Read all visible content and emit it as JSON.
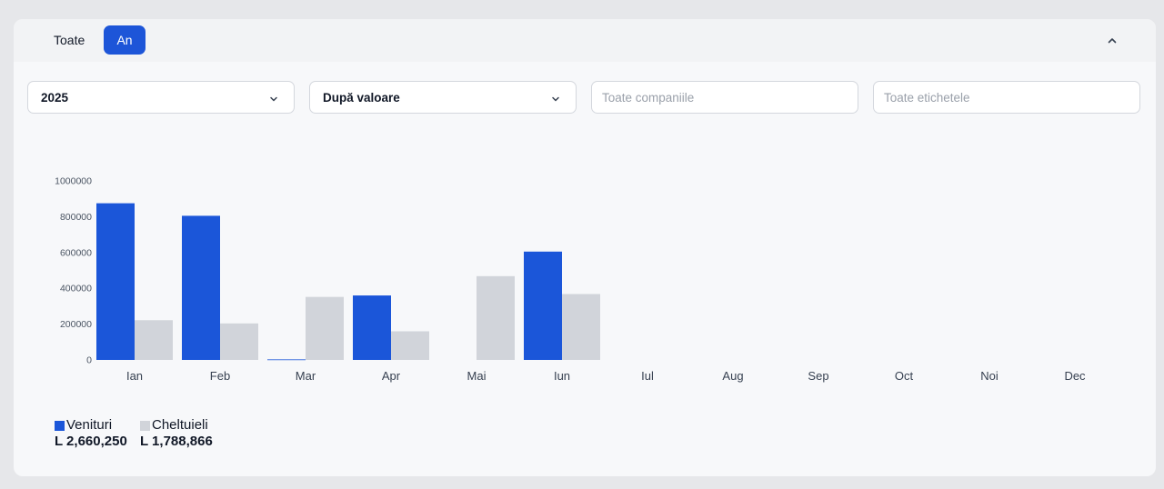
{
  "tabs": [
    {
      "label": "Toate",
      "active": false
    },
    {
      "label": "An",
      "active": true
    }
  ],
  "filters": {
    "year": {
      "value": "2025"
    },
    "sort": {
      "value": "După valoare"
    },
    "companies": {
      "placeholder": "Toate companiile"
    },
    "tags": {
      "placeholder": "Toate etichetele"
    }
  },
  "colors": {
    "accent": "#1d55d8",
    "revenue": "#1b56d9",
    "expenses": "#d1d4da"
  },
  "icons": {
    "collapse": "chevron-up-icon",
    "dropdown": "chevron-down-icon"
  },
  "legend": [
    {
      "name": "Venituri",
      "total": "L 2,660,250",
      "color": "#1b56d9"
    },
    {
      "name": "Cheltuieli",
      "total": "L 1,788,866",
      "color": "#d1d4da"
    }
  ],
  "chart_data": {
    "type": "bar",
    "categories": [
      "Ian",
      "Feb",
      "Mar",
      "Apr",
      "Mai",
      "Iun",
      "Iul",
      "Aug",
      "Sep",
      "Oct",
      "Noi",
      "Dec"
    ],
    "series": [
      {
        "name": "Venituri",
        "values": [
          875000,
          805000,
          3000,
          360000,
          0,
          605000,
          0,
          0,
          0,
          0,
          0,
          0
        ]
      },
      {
        "name": "Cheltuieli",
        "values": [
          222000,
          204000,
          352000,
          160000,
          468000,
          368000,
          0,
          0,
          0,
          0,
          0,
          0
        ]
      }
    ],
    "y_ticks": [
      "0",
      "200000",
      "400000",
      "600000",
      "800000",
      "1000000"
    ],
    "ylim": [
      0,
      1000000
    ],
    "grid": false,
    "legend_position": "bottom-left"
  }
}
